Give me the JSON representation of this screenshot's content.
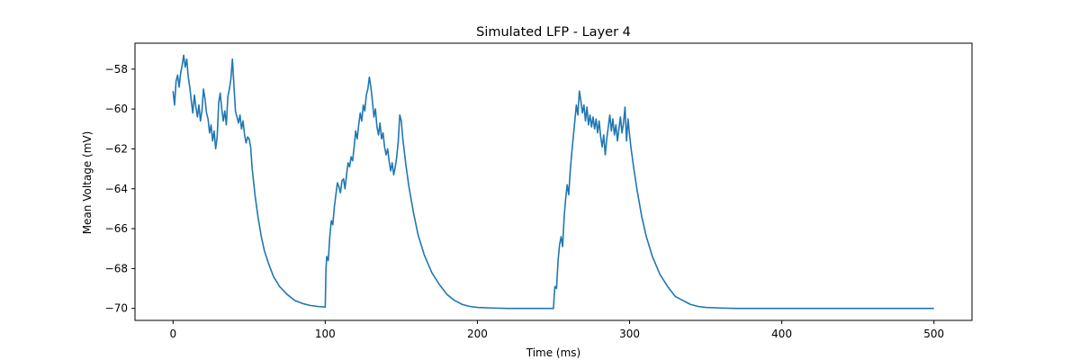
{
  "chart_data": {
    "type": "line",
    "title": "Simulated LFP - Layer 4",
    "xlabel": "Time (ms)",
    "ylabel": "Mean Voltage (mV)",
    "xlim": [
      -25,
      525
    ],
    "ylim": [
      -70.6,
      -56.7
    ],
    "x_ticks": [
      0,
      100,
      200,
      300,
      400,
      500
    ],
    "x_tick_labels": [
      "0",
      "100",
      "200",
      "300",
      "400",
      "500"
    ],
    "y_ticks": [
      -70,
      -68,
      -66,
      -64,
      -62,
      -60,
      -58
    ],
    "y_tick_labels": [
      "−70",
      "−68",
      "−66",
      "−64",
      "−62",
      "−60",
      "−58"
    ],
    "grid": false,
    "legend": "none",
    "series": [
      {
        "color": "#1f77b4",
        "points": [
          [
            0,
            -59.1
          ],
          [
            1,
            -59.8
          ],
          [
            2,
            -58.6
          ],
          [
            3,
            -58.3
          ],
          [
            4,
            -58.9
          ],
          [
            5,
            -58.2
          ],
          [
            6,
            -57.8
          ],
          [
            7,
            -57.3
          ],
          [
            8,
            -57.9
          ],
          [
            9,
            -57.5
          ],
          [
            10,
            -58.4
          ],
          [
            11,
            -58.9
          ],
          [
            12,
            -59.6
          ],
          [
            13,
            -60.2
          ],
          [
            14,
            -59.3
          ],
          [
            15,
            -59.9
          ],
          [
            16,
            -60.4
          ],
          [
            17,
            -59.8
          ],
          [
            18,
            -60.6
          ],
          [
            19,
            -60.1
          ],
          [
            20,
            -59.0
          ],
          [
            21,
            -59.5
          ],
          [
            22,
            -60.2
          ],
          [
            23,
            -60.5
          ],
          [
            24,
            -61.2
          ],
          [
            25,
            -60.8
          ],
          [
            26,
            -61.6
          ],
          [
            27,
            -61.1
          ],
          [
            28,
            -62.0
          ],
          [
            29,
            -61.4
          ],
          [
            30,
            -59.7
          ],
          [
            31,
            -59.2
          ],
          [
            32,
            -60.0
          ],
          [
            33,
            -60.6
          ],
          [
            34,
            -60.1
          ],
          [
            35,
            -60.8
          ],
          [
            36,
            -59.4
          ],
          [
            37,
            -59.0
          ],
          [
            38,
            -58.5
          ],
          [
            39,
            -57.5
          ],
          [
            40,
            -58.8
          ],
          [
            41,
            -60.1
          ],
          [
            42,
            -60.4
          ],
          [
            43,
            -60.7
          ],
          [
            44,
            -60.3
          ],
          [
            45,
            -61.0
          ],
          [
            46,
            -60.6
          ],
          [
            47,
            -61.3
          ],
          [
            48,
            -61.7
          ],
          [
            49,
            -61.4
          ],
          [
            50,
            -61.5
          ],
          [
            51,
            -61.9
          ],
          [
            52,
            -63.0
          ],
          [
            54,
            -64.4
          ],
          [
            56,
            -65.5
          ],
          [
            58,
            -66.4
          ],
          [
            60,
            -67.1
          ],
          [
            63,
            -67.8
          ],
          [
            66,
            -68.4
          ],
          [
            70,
            -68.9
          ],
          [
            75,
            -69.3
          ],
          [
            80,
            -69.6
          ],
          [
            85,
            -69.75
          ],
          [
            90,
            -69.85
          ],
          [
            95,
            -69.9
          ],
          [
            100,
            -69.93
          ],
          [
            100.5,
            -68.0
          ],
          [
            101,
            -67.4
          ],
          [
            102,
            -67.6
          ],
          [
            103,
            -66.4
          ],
          [
            104,
            -65.6
          ],
          [
            105,
            -65.8
          ],
          [
            106,
            -64.9
          ],
          [
            107,
            -64.3
          ],
          [
            108,
            -63.7
          ],
          [
            109,
            -63.9
          ],
          [
            110,
            -64.2
          ],
          [
            111,
            -63.6
          ],
          [
            112,
            -63.5
          ],
          [
            113,
            -64.0
          ],
          [
            114,
            -63.3
          ],
          [
            115,
            -62.7
          ],
          [
            116,
            -62.9
          ],
          [
            117,
            -62.4
          ],
          [
            118,
            -62.6
          ],
          [
            119,
            -61.9
          ],
          [
            120,
            -61.1
          ],
          [
            121,
            -61.5
          ],
          [
            122,
            -60.8
          ],
          [
            123,
            -60.2
          ],
          [
            124,
            -60.6
          ],
          [
            125,
            -59.8
          ],
          [
            126,
            -60.1
          ],
          [
            127,
            -59.3
          ],
          [
            128,
            -59.0
          ],
          [
            129,
            -58.4
          ],
          [
            130,
            -58.9
          ],
          [
            131,
            -59.6
          ],
          [
            132,
            -60.4
          ],
          [
            133,
            -60.0
          ],
          [
            134,
            -60.9
          ],
          [
            135,
            -61.3
          ],
          [
            136,
            -60.7
          ],
          [
            137,
            -61.5
          ],
          [
            138,
            -61.2
          ],
          [
            139,
            -61.9
          ],
          [
            140,
            -62.3
          ],
          [
            141,
            -62.0
          ],
          [
            142,
            -62.6
          ],
          [
            143,
            -63.1
          ],
          [
            144,
            -62.7
          ],
          [
            145,
            -63.3
          ],
          [
            146,
            -62.9
          ],
          [
            147,
            -62.4
          ],
          [
            148,
            -61.6
          ],
          [
            149,
            -60.3
          ],
          [
            150,
            -60.6
          ],
          [
            151,
            -61.5
          ],
          [
            153,
            -62.8
          ],
          [
            155,
            -63.9
          ],
          [
            158,
            -65.2
          ],
          [
            161,
            -66.3
          ],
          [
            165,
            -67.3
          ],
          [
            170,
            -68.2
          ],
          [
            175,
            -68.8
          ],
          [
            180,
            -69.3
          ],
          [
            185,
            -69.6
          ],
          [
            190,
            -69.8
          ],
          [
            195,
            -69.9
          ],
          [
            200,
            -69.95
          ],
          [
            210,
            -69.98
          ],
          [
            220,
            -70.0
          ],
          [
            230,
            -70.0
          ],
          [
            240,
            -70.0
          ],
          [
            250,
            -70.0
          ],
          [
            250.5,
            -69.3
          ],
          [
            251,
            -68.9
          ],
          [
            252,
            -69.0
          ],
          [
            253,
            -67.6
          ],
          [
            254,
            -66.8
          ],
          [
            255,
            -66.4
          ],
          [
            256,
            -66.9
          ],
          [
            257,
            -65.4
          ],
          [
            258,
            -64.5
          ],
          [
            259,
            -63.8
          ],
          [
            260,
            -64.3
          ],
          [
            261,
            -63.1
          ],
          [
            262,
            -62.2
          ],
          [
            263,
            -61.4
          ],
          [
            264,
            -60.6
          ],
          [
            265,
            -59.8
          ],
          [
            266,
            -60.3
          ],
          [
            267,
            -59.1
          ],
          [
            268,
            -59.6
          ],
          [
            269,
            -60.2
          ],
          [
            270,
            -59.8
          ],
          [
            271,
            -60.6
          ],
          [
            272,
            -59.9
          ],
          [
            273,
            -60.8
          ],
          [
            274,
            -60.3
          ],
          [
            275,
            -60.9
          ],
          [
            276,
            -60.4
          ],
          [
            277,
            -61.0
          ],
          [
            278,
            -60.5
          ],
          [
            279,
            -61.2
          ],
          [
            280,
            -60.6
          ],
          [
            281,
            -61.4
          ],
          [
            282,
            -61.9
          ],
          [
            283,
            -61.3
          ],
          [
            284,
            -62.3
          ],
          [
            285,
            -61.5
          ],
          [
            286,
            -60.9
          ],
          [
            287,
            -60.3
          ],
          [
            288,
            -61.1
          ],
          [
            289,
            -60.5
          ],
          [
            290,
            -61.3
          ],
          [
            291,
            -60.8
          ],
          [
            292,
            -61.6
          ],
          [
            293,
            -61.0
          ],
          [
            294,
            -60.4
          ],
          [
            295,
            -61.2
          ],
          [
            296,
            -60.7
          ],
          [
            297,
            -59.9
          ],
          [
            298,
            -61.6
          ],
          [
            299,
            -60.5
          ],
          [
            300,
            -61.3
          ],
          [
            301,
            -62.0
          ],
          [
            303,
            -63.1
          ],
          [
            305,
            -64.1
          ],
          [
            308,
            -65.4
          ],
          [
            311,
            -66.4
          ],
          [
            315,
            -67.4
          ],
          [
            320,
            -68.3
          ],
          [
            325,
            -68.9
          ],
          [
            330,
            -69.4
          ],
          [
            335,
            -69.6
          ],
          [
            340,
            -69.8
          ],
          [
            345,
            -69.9
          ],
          [
            350,
            -69.95
          ],
          [
            360,
            -69.98
          ],
          [
            370,
            -70.0
          ],
          [
            400,
            -70.0
          ],
          [
            450,
            -70.0
          ],
          [
            500,
            -70.0
          ]
        ]
      }
    ]
  }
}
